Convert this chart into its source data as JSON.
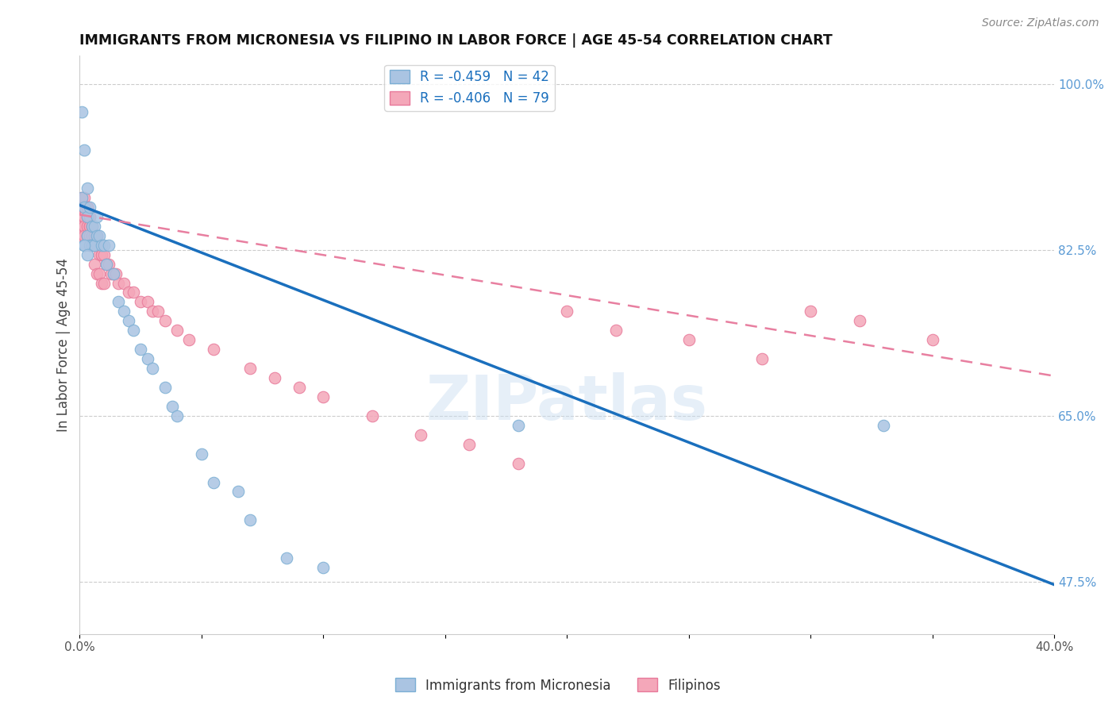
{
  "title": "IMMIGRANTS FROM MICRONESIA VS FILIPINO IN LABOR FORCE | AGE 45-54 CORRELATION CHART",
  "source": "Source: ZipAtlas.com",
  "ylabel": "In Labor Force | Age 45-54",
  "x_min": 0.0,
  "x_max": 0.4,
  "y_min": 0.42,
  "y_max": 1.03,
  "watermark": "ZIPatlas",
  "micronesia_color": "#aac4e2",
  "micronesia_edge": "#7bafd4",
  "filipino_color": "#f4a7b9",
  "filipino_edge": "#e8799a",
  "line_micronesia_color": "#1a6fbd",
  "line_filipino_color": "#e87fa0",
  "legend_R1": "-0.459",
  "legend_N1": "42",
  "legend_R2": "-0.406",
  "legend_N2": "79",
  "mic_line_x0": 0.0,
  "mic_line_y0": 0.872,
  "mic_line_x1": 0.4,
  "mic_line_y1": 0.472,
  "fil_line_x0": 0.0,
  "fil_line_y0": 0.862,
  "fil_line_x1": 0.4,
  "fil_line_y1": 0.692,
  "micronesia_x": [
    0.001,
    0.001,
    0.002,
    0.002,
    0.002,
    0.003,
    0.003,
    0.003,
    0.004,
    0.004,
    0.005,
    0.005,
    0.006,
    0.006,
    0.007,
    0.007,
    0.008,
    0.009,
    0.01,
    0.011,
    0.012,
    0.014,
    0.016,
    0.018,
    0.02,
    0.022,
    0.025,
    0.028,
    0.03,
    0.035,
    0.038,
    0.04,
    0.05,
    0.055,
    0.065,
    0.07,
    0.085,
    0.1,
    0.18,
    0.33,
    0.002,
    0.003
  ],
  "micronesia_y": [
    0.97,
    0.88,
    0.93,
    0.87,
    0.83,
    0.89,
    0.86,
    0.84,
    0.87,
    0.83,
    0.85,
    0.83,
    0.85,
    0.83,
    0.86,
    0.84,
    0.84,
    0.83,
    0.83,
    0.81,
    0.83,
    0.8,
    0.77,
    0.76,
    0.75,
    0.74,
    0.72,
    0.71,
    0.7,
    0.68,
    0.66,
    0.65,
    0.61,
    0.58,
    0.57,
    0.54,
    0.5,
    0.49,
    0.64,
    0.64,
    0.83,
    0.82
  ],
  "filipino_x": [
    0.001,
    0.001,
    0.001,
    0.001,
    0.001,
    0.001,
    0.001,
    0.002,
    0.002,
    0.002,
    0.002,
    0.002,
    0.002,
    0.003,
    0.003,
    0.003,
    0.003,
    0.003,
    0.003,
    0.004,
    0.004,
    0.004,
    0.004,
    0.004,
    0.004,
    0.005,
    0.005,
    0.005,
    0.006,
    0.006,
    0.006,
    0.006,
    0.007,
    0.007,
    0.007,
    0.008,
    0.008,
    0.009,
    0.009,
    0.01,
    0.011,
    0.012,
    0.013,
    0.014,
    0.015,
    0.016,
    0.018,
    0.02,
    0.022,
    0.025,
    0.028,
    0.03,
    0.032,
    0.035,
    0.04,
    0.045,
    0.055,
    0.07,
    0.08,
    0.09,
    0.1,
    0.12,
    0.14,
    0.16,
    0.18,
    0.2,
    0.22,
    0.25,
    0.28,
    0.3,
    0.32,
    0.35,
    0.004,
    0.005,
    0.006,
    0.007,
    0.008,
    0.009,
    0.01
  ],
  "filipino_y": [
    0.88,
    0.87,
    0.87,
    0.86,
    0.86,
    0.85,
    0.84,
    0.88,
    0.87,
    0.86,
    0.86,
    0.85,
    0.84,
    0.87,
    0.87,
    0.86,
    0.85,
    0.84,
    0.84,
    0.86,
    0.86,
    0.85,
    0.85,
    0.84,
    0.84,
    0.85,
    0.85,
    0.84,
    0.84,
    0.84,
    0.83,
    0.83,
    0.84,
    0.83,
    0.83,
    0.83,
    0.82,
    0.82,
    0.82,
    0.82,
    0.81,
    0.81,
    0.8,
    0.8,
    0.8,
    0.79,
    0.79,
    0.78,
    0.78,
    0.77,
    0.77,
    0.76,
    0.76,
    0.75,
    0.74,
    0.73,
    0.72,
    0.7,
    0.69,
    0.68,
    0.67,
    0.65,
    0.63,
    0.62,
    0.6,
    0.76,
    0.74,
    0.73,
    0.71,
    0.76,
    0.75,
    0.73,
    0.83,
    0.83,
    0.81,
    0.8,
    0.8,
    0.79,
    0.79
  ]
}
